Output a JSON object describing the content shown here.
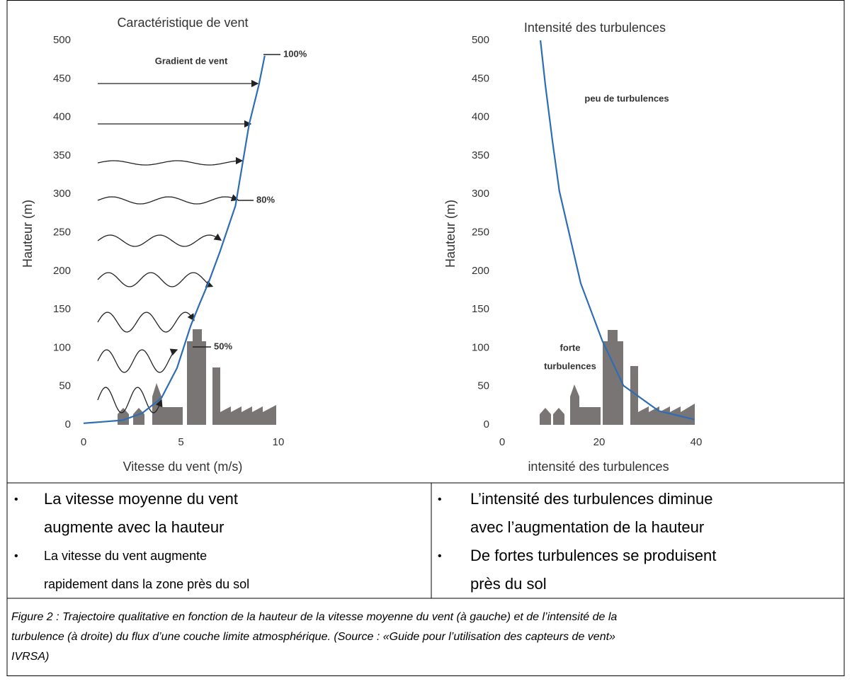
{
  "chart_data": [
    {
      "type": "line",
      "title": "Caractéristique de vent",
      "xlabel": "Vitesse du vent (m/s)",
      "ylabel": "Hauteur (m)",
      "x": [
        0,
        1,
        2,
        3,
        4,
        4.8,
        5.5,
        6,
        6.4,
        7,
        7.8,
        8.5,
        9,
        9.3
      ],
      "values": [
        2,
        4,
        6,
        15,
        35,
        74,
        129,
        160,
        184,
        225,
        285,
        391,
        442,
        480
      ],
      "color": "#2e6db4",
      "xlim": [
        0,
        10
      ],
      "ylim": [
        0,
        500
      ],
      "xticks": [
        0,
        5,
        10
      ],
      "yticks": [
        0,
        50,
        100,
        150,
        200,
        250,
        300,
        350,
        400,
        450,
        500
      ],
      "grid": false,
      "annotations": [
        "Gradient de vent",
        "100%",
        "80%",
        "50%"
      ]
    },
    {
      "type": "line",
      "title": "Intensité des turbulences",
      "xlabel": "intensité des turbulences",
      "ylabel": "Hauteur (m)",
      "x": [
        7.9,
        8.9,
        10.4,
        11.8,
        16.2,
        20.6,
        25,
        32.3,
        39.6
      ],
      "values": [
        500,
        442,
        368,
        304,
        184,
        110,
        51,
        18,
        7
      ],
      "color": "#2e6db4",
      "xlim": [
        0,
        40
      ],
      "ylim": [
        0,
        500
      ],
      "xticks": [
        0,
        20,
        40
      ],
      "yticks": [
        0,
        50,
        100,
        150,
        200,
        250,
        300,
        350,
        400,
        450,
        500
      ],
      "grid": false,
      "annotations": [
        "peu de turbulences",
        "forte",
        "turbulences"
      ]
    }
  ],
  "bullets": {
    "left": [
      [
        "La vitesse moyenne du vent",
        "augmente avec la hauteur"
      ],
      [
        "La vitesse du vent augmente",
        "rapidement dans la zone près du sol"
      ]
    ],
    "right": [
      [
        "L’intensité des turbulences diminue",
        "avec l’augmentation de la hauteur"
      ],
      [
        "De fortes turbulences se produisent",
        "près du sol"
      ]
    ]
  },
  "caption": [
    "Figure 2 : Trajectoire qualitative en fonction de la hauteur de la vitesse moyenne du vent (à gauche) et de l’intensité de la",
    "turbulence (à droite) du flux d’une couche limite atmosphérique. (Source : «Guide pour l’utilisation des capteurs de vent»",
    "IVRSA)"
  ]
}
